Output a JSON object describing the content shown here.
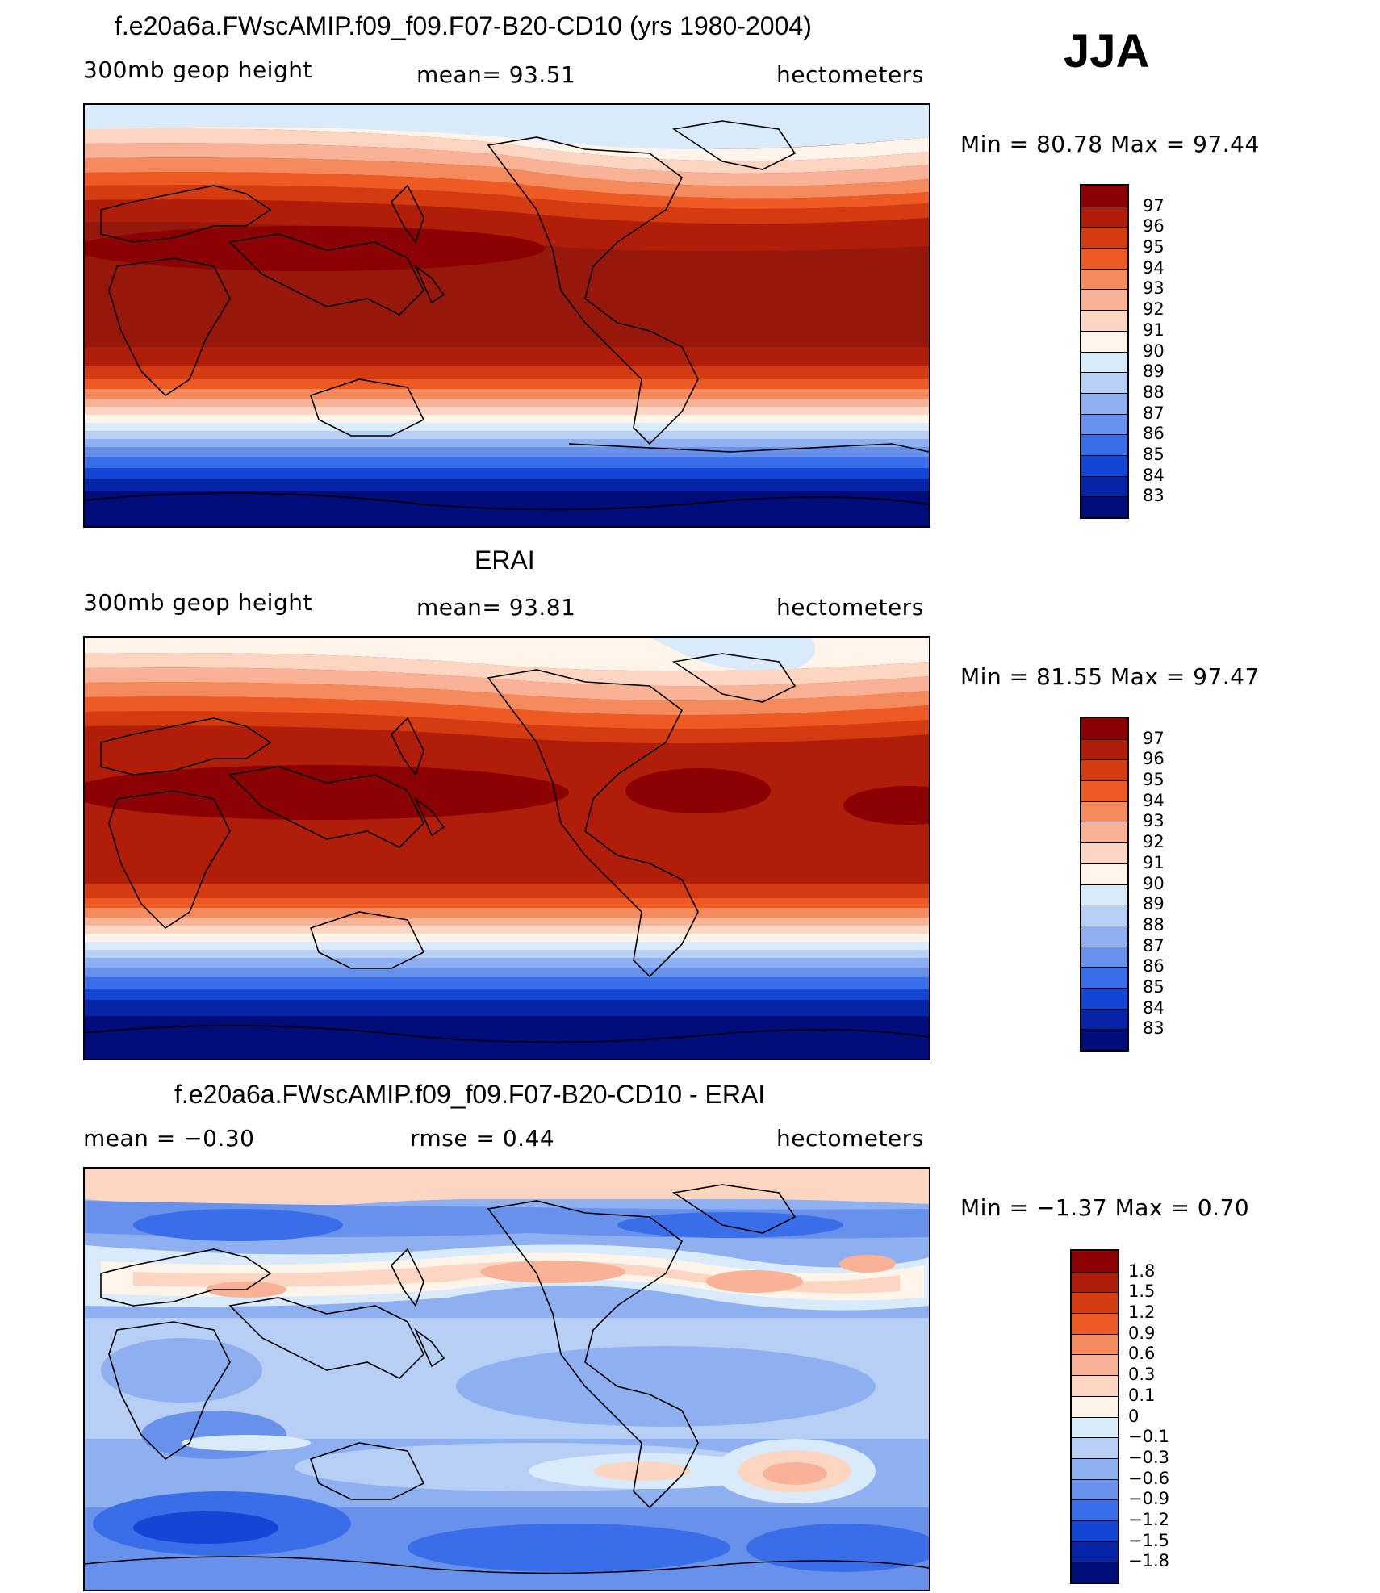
{
  "season": "JJA",
  "panels": [
    {
      "title": "f.e20a6a.FWscAMIP.f09_f09.F07-B20-CD10 (yrs 1980-2004)",
      "variable": "300mb  geop  height",
      "stat1": "mean=   93.51",
      "units": "hectometers",
      "minmax": "Min =    80.78  Max =    97.44",
      "colorbar": {
        "labels": [
          "97",
          "96",
          "95",
          "94",
          "93",
          "92",
          "91",
          "90",
          "89",
          "88",
          "87",
          "86",
          "85",
          "84",
          "83"
        ],
        "colors": [
          "#8b0000",
          "#b01e0a",
          "#d43b10",
          "#ee5a24",
          "#f58a5c",
          "#f9b295",
          "#fdd6c2",
          "#fff4ea",
          "#d9eafb",
          "#b7cff5",
          "#8fb0f0",
          "#6891ec",
          "#3a6ee8",
          "#1446d6",
          "#0525a6",
          "#000c7a"
        ]
      }
    },
    {
      "title": "ERAI",
      "variable": "300mb  geop  height",
      "stat1": "mean=   93.81",
      "units": "hectometers",
      "minmax": "Min =    81.55  Max =    97.47",
      "colorbar": {
        "labels": [
          "97",
          "96",
          "95",
          "94",
          "93",
          "92",
          "91",
          "90",
          "89",
          "88",
          "87",
          "86",
          "85",
          "84",
          "83"
        ],
        "colors": [
          "#8b0000",
          "#b01e0a",
          "#d43b10",
          "#ee5a24",
          "#f58a5c",
          "#f9b295",
          "#fdd6c2",
          "#fff4ea",
          "#d9eafb",
          "#b7cff5",
          "#8fb0f0",
          "#6891ec",
          "#3a6ee8",
          "#1446d6",
          "#0525a6",
          "#000c7a"
        ]
      }
    },
    {
      "title": "f.e20a6a.FWscAMIP.f09_f09.F07-B20-CD10 - ERAI",
      "stat0": "mean  =    −0.30",
      "stat1": "rmse  =     0.44",
      "units": "hectometers",
      "minmax": "Min =   −1.37  Max =      0.70",
      "colorbar": {
        "labels": [
          "1.8",
          "1.5",
          "1.2",
          "0.9",
          "0.6",
          "0.3",
          "0.1",
          "0",
          "−0.1",
          "−0.3",
          "−0.6",
          "−0.9",
          "−1.2",
          "−1.5",
          "−1.8"
        ],
        "colors": [
          "#8b0000",
          "#b01e0a",
          "#d43b10",
          "#ee5a24",
          "#f58a5c",
          "#f9b295",
          "#fdd6c2",
          "#fff4ea",
          "#d9eafb",
          "#b7cff5",
          "#8fb0f0",
          "#6891ec",
          "#3a6ee8",
          "#1446d6",
          "#0525a6",
          "#000c7a"
        ]
      }
    }
  ]
}
